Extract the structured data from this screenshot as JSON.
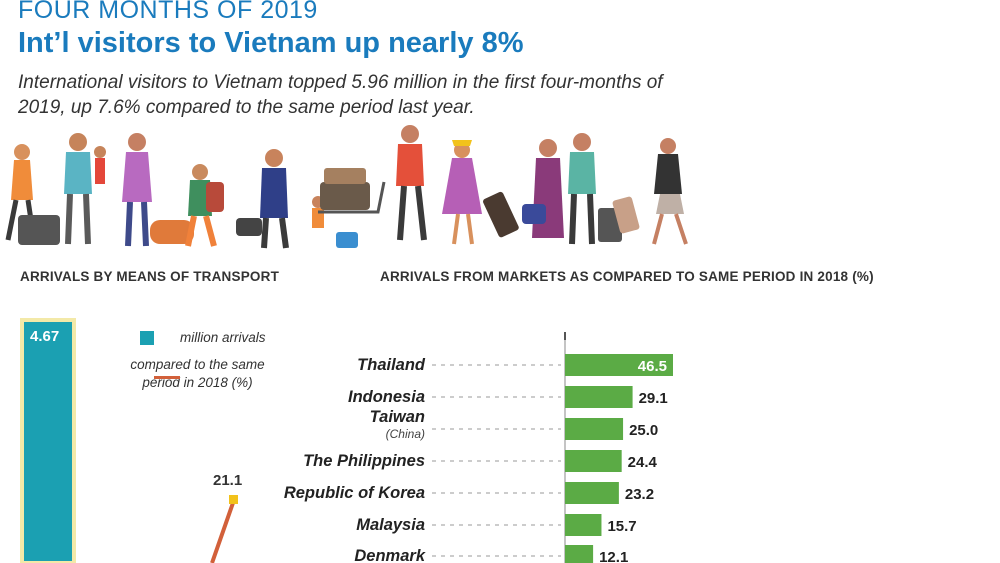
{
  "header": {
    "kicker": "FOUR MONTHS OF 2019",
    "title": "Int’l visitors to Vietnam up nearly 8%",
    "subtitle": "International visitors to Vietnam topped 5.96 million in the first four-months of 2019, up 7.6% compared to the same period last year."
  },
  "sections": {
    "transport_label": "ARRIVALS BY MEANS OF TRANSPORT",
    "markets_label": "ARRIVALS FROM MARKETS AS COMPARED TO SAME PERIOD IN 2018 (%)"
  },
  "legend": {
    "bar_label": "million arrivals",
    "line_label": "compared to the same period in 2018 (%)"
  },
  "colors": {
    "title_blue": "#1a7bbd",
    "teal_bar": "#1ba0b2",
    "green_bar": "#5bab45",
    "orange_line": "#d2603a",
    "yellow_marker": "#f2c21b"
  },
  "chart_data": [
    {
      "type": "bar",
      "title": "ARRIVALS BY MEANS OF TRANSPORT",
      "visible_values": {
        "bar_million_arrivals": "4.67",
        "line_percent": "21.1"
      }
    },
    {
      "type": "bar",
      "orientation": "horizontal",
      "title": "ARRIVALS FROM MARKETS AS COMPARED TO SAME PERIOD IN 2018 (%)",
      "categories": [
        {
          "name": "Thailand",
          "note": ""
        },
        {
          "name": "Indonesia",
          "note": ""
        },
        {
          "name": "Taiwan",
          "note": "(China)"
        },
        {
          "name": "The Philippines",
          "note": ""
        },
        {
          "name": "Republic of Korea",
          "note": ""
        },
        {
          "name": "Malaysia",
          "note": ""
        },
        {
          "name": "Denmark",
          "note": ""
        }
      ],
      "values": [
        46.5,
        29.1,
        25.0,
        24.4,
        23.2,
        15.7,
        12.1
      ],
      "value_labels": [
        "46.5",
        "29.1",
        "25.0",
        "24.4",
        "23.2",
        "15.7",
        "12.1"
      ],
      "xlim": [
        0,
        46.5
      ]
    }
  ]
}
